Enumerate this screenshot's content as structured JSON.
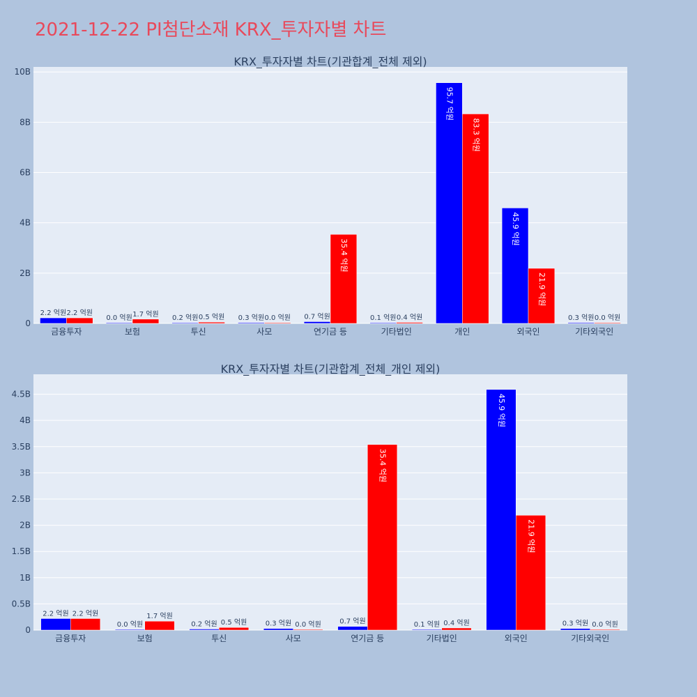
{
  "page_title": "2021-12-22 PI첨단소재 KRX_투자자별 차트",
  "colors": {
    "series_1": "#0000ff",
    "series_2": "#ff0000",
    "plot_bg": "#e5ecf6",
    "page_bg": "#b0c4de",
    "title": "#e8495b"
  },
  "chart_data": [
    {
      "type": "bar",
      "title": "KRX_투자자별 차트(기관합계_전체 제외)",
      "categories": [
        "금융투자",
        "보험",
        "투신",
        "사모",
        "연기금 등",
        "기타법인",
        "개인",
        "외국인",
        "기타외국인"
      ],
      "series": [
        {
          "values": [
            0.22,
            0.0,
            0.02,
            0.03,
            0.07,
            0.01,
            9.57,
            4.59,
            0.03
          ],
          "labels": [
            "2.2 억원",
            "0.0 억원",
            "0.2 억원",
            "0.3 억원",
            "0.7 억원",
            "0.1 억원",
            "95.7 억원",
            "45.9 억원",
            "0.3 억원"
          ]
        },
        {
          "values": [
            0.22,
            0.17,
            0.05,
            0.0,
            3.54,
            0.04,
            8.33,
            2.19,
            0.0
          ],
          "labels": [
            "2.2 억원",
            "1.7 억원",
            "0.5 억원",
            "0.0 억원",
            "35.4 억원",
            "0.4 억원",
            "83.3 억원",
            "21.9 억원",
            "0.0 억원"
          ]
        }
      ],
      "ylim": [
        0,
        10.2
      ],
      "yticks": [
        0,
        2,
        4,
        6,
        8,
        10
      ],
      "ytick_labels": [
        "0",
        "2B",
        "4B",
        "6B",
        "8B",
        "10B"
      ],
      "grid": true
    },
    {
      "type": "bar",
      "title": "KRX_투자자별 차트(기관합계_전체_개인 제외)",
      "categories": [
        "금융투자",
        "보험",
        "투신",
        "사모",
        "연기금 등",
        "기타법인",
        "외국인",
        "기타외국인"
      ],
      "series": [
        {
          "values": [
            0.22,
            0.0,
            0.02,
            0.03,
            0.07,
            0.01,
            4.59,
            0.03
          ],
          "labels": [
            "2.2 억원",
            "0.0 억원",
            "0.2 억원",
            "0.3 억원",
            "0.7 억원",
            "0.1 억원",
            "45.9 억원",
            "0.3 억원"
          ]
        },
        {
          "values": [
            0.22,
            0.17,
            0.05,
            0.0,
            3.54,
            0.04,
            2.19,
            0.0
          ],
          "labels": [
            "2.2 억원",
            "1.7 억원",
            "0.5 억원",
            "0.0 억원",
            "35.4 억원",
            "0.4 억원",
            "21.9 억원",
            "0.0 억원"
          ]
        }
      ],
      "ylim": [
        0,
        4.88
      ],
      "yticks": [
        0,
        0.5,
        1,
        1.5,
        2,
        2.5,
        3,
        3.5,
        4,
        4.5
      ],
      "ytick_labels": [
        "0",
        "0.5B",
        "1B",
        "1.5B",
        "2B",
        "2.5B",
        "3B",
        "3.5B",
        "4B",
        "4.5B"
      ],
      "grid": true
    }
  ]
}
